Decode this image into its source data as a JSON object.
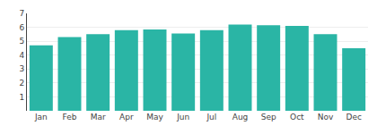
{
  "chart_data": {
    "type": "bar",
    "categories": [
      "Jan",
      "Feb",
      "Mar",
      "Apr",
      "May",
      "Jun",
      "Jul",
      "Aug",
      "Sep",
      "Oct",
      "Nov",
      "Dec"
    ],
    "values": [
      4.7,
      5.3,
      5.5,
      5.8,
      5.85,
      5.55,
      5.8,
      6.2,
      6.15,
      6.1,
      5.5,
      4.5
    ],
    "color": "#2ab5a5",
    "ylim": [
      0,
      7
    ],
    "yticks": [
      1,
      2,
      3,
      4,
      5,
      6,
      7
    ],
    "grid": true
  }
}
